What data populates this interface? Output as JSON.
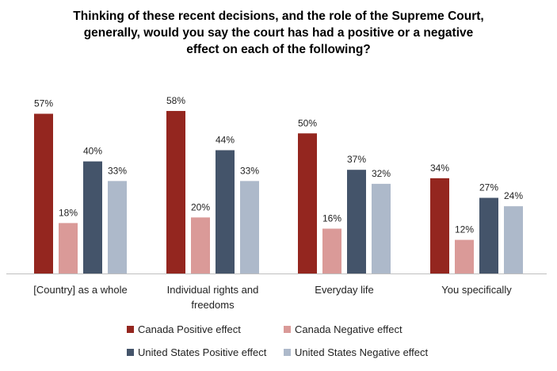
{
  "chart_data": {
    "type": "bar",
    "title": "Thinking of these recent decisions, and the role of the Supreme Court, generally, would you say the court has had a positive or a negative effect on each of the following?",
    "title_lines": [
      "Thinking of these recent decisions, and the role of the Supreme Court,",
      "generally, would you say the court has had a positive or a negative",
      "effect on each of the following?"
    ],
    "categories": [
      [
        "[Country] as a whole"
      ],
      [
        "Individual rights and",
        "freedoms"
      ],
      [
        "Everyday life"
      ],
      [
        "You specifically"
      ]
    ],
    "series": [
      {
        "name": "Canada Positive effect",
        "color": "#94261f",
        "values": [
          57,
          58,
          50,
          34
        ]
      },
      {
        "name": "Canada Negative effect",
        "color": "#da9a98",
        "values": [
          18,
          20,
          16,
          12
        ]
      },
      {
        "name": "United States Positive effect",
        "color": "#44546a",
        "values": [
          40,
          44,
          37,
          27
        ]
      },
      {
        "name": "United States Negative effect",
        "color": "#adb9ca",
        "values": [
          33,
          33,
          32,
          24
        ]
      }
    ],
    "value_suffix": "%",
    "ylim": [
      0,
      60
    ],
    "grid": false,
    "legend": "bottom",
    "xlabel": "",
    "ylabel": ""
  }
}
